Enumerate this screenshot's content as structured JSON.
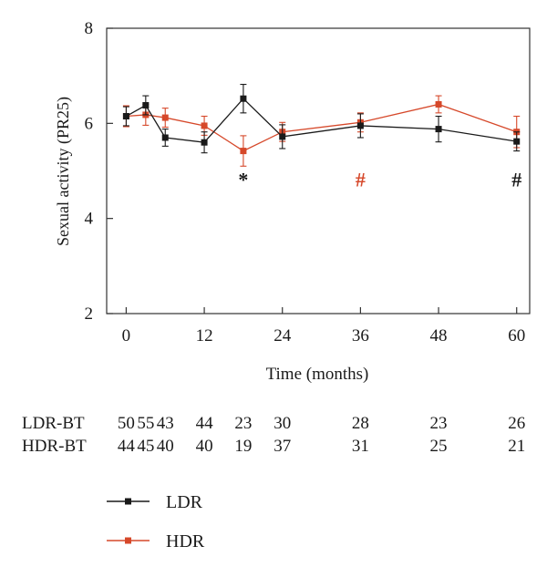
{
  "chart_data": {
    "type": "line",
    "xlabel": "Time (months)",
    "ylabel": "Sexual activity (PR25)",
    "xlim": [
      -3,
      62
    ],
    "ylim": [
      2,
      8
    ],
    "xticks": [
      0,
      12,
      24,
      36,
      48,
      60
    ],
    "yticks": [
      2,
      4,
      6,
      8
    ],
    "grid": false,
    "series": [
      {
        "name": "LDR",
        "color": "#1a1a1a",
        "marker": "square",
        "points": [
          {
            "x": 0,
            "y": 6.15,
            "err": 0.2
          },
          {
            "x": 3,
            "y": 6.38,
            "err": 0.2
          },
          {
            "x": 6,
            "y": 5.7,
            "err": 0.18
          },
          {
            "x": 12,
            "y": 5.6,
            "err": 0.22
          },
          {
            "x": 18,
            "y": 6.52,
            "err": 0.3
          },
          {
            "x": 24,
            "y": 5.72,
            "err": 0.25
          },
          {
            "x": 36,
            "y": 5.95,
            "err": 0.25
          },
          {
            "x": 48,
            "y": 5.88,
            "err": 0.27
          },
          {
            "x": 60,
            "y": 5.62,
            "err": 0.2
          }
        ]
      },
      {
        "name": "HDR",
        "color": "#d6482a",
        "marker": "square",
        "points": [
          {
            "x": 0,
            "y": 6.15,
            "err": 0.22
          },
          {
            "x": 3,
            "y": 6.18,
            "err": 0.22
          },
          {
            "x": 6,
            "y": 6.12,
            "err": 0.2
          },
          {
            "x": 12,
            "y": 5.95,
            "err": 0.2
          },
          {
            "x": 18,
            "y": 5.42,
            "err": 0.32
          },
          {
            "x": 24,
            "y": 5.82,
            "err": 0.2
          },
          {
            "x": 36,
            "y": 6.02,
            "err": 0.2
          },
          {
            "x": 48,
            "y": 6.4,
            "err": 0.18
          },
          {
            "x": 60,
            "y": 5.82,
            "err": 0.33
          }
        ]
      }
    ],
    "annotations": [
      {
        "text": "*",
        "x": 18,
        "y": 4.85,
        "color": "#1a1a1a"
      },
      {
        "text": "#",
        "x": 36,
        "y": 4.85,
        "color": "#d6482a"
      },
      {
        "text": "#",
        "x": 60,
        "y": 4.85,
        "color": "#1a1a1a"
      }
    ],
    "sample_table": {
      "rows": [
        {
          "label": "LDR-BT",
          "values": [
            "50",
            "55",
            "43",
            "44",
            "23",
            "30",
            "28",
            "23",
            "26"
          ]
        },
        {
          "label": "HDR-BT",
          "values": [
            "44",
            "45",
            "40",
            "40",
            "19",
            "37",
            "31",
            "25",
            "21"
          ]
        }
      ]
    },
    "legend": {
      "placement": "bottom-left",
      "entries": [
        "LDR",
        "HDR"
      ]
    }
  }
}
